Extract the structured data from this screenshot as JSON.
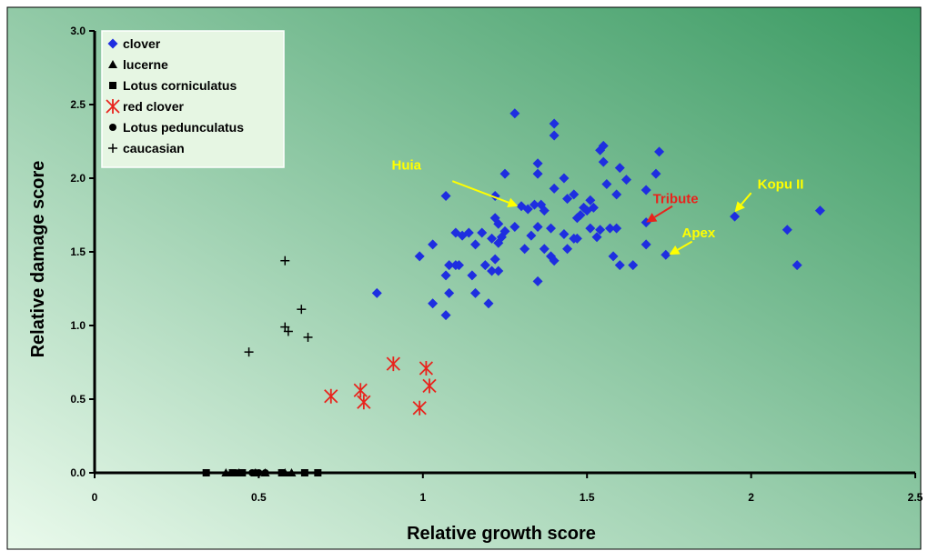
{
  "chart_data": {
    "type": "scatter",
    "xlabel": "Relative growth score",
    "ylabel": "Relative damage score",
    "xlim": [
      0,
      2.5
    ],
    "ylim": [
      0,
      3.0
    ],
    "x_ticks": [
      "0",
      "0.5",
      "1",
      "1.5",
      "2",
      "2.5"
    ],
    "y_ticks": [
      "0.0",
      "0.5",
      "1.0",
      "1.5",
      "2.0",
      "2.5",
      "3.0"
    ],
    "grid": false,
    "legend_position": "top-left",
    "colors": {
      "plot_gradient_top": "#3a9a62",
      "plot_gradient_bottom": "#eafaec",
      "legend_background": "#e6f6e3",
      "clover": "#1e2ee0",
      "red_clover": "#e8231c",
      "black": "#000000",
      "annotation_yellow": "#ffff00",
      "annotation_red": "#e8231c"
    },
    "series": [
      {
        "name": "clover",
        "marker": "diamond",
        "points": [
          [
            1.28,
            2.44
          ],
          [
            1.4,
            2.37
          ],
          [
            1.4,
            2.29
          ],
          [
            1.55,
            2.22
          ],
          [
            1.54,
            2.19
          ],
          [
            1.72,
            2.18
          ],
          [
            1.35,
            2.1
          ],
          [
            1.55,
            2.11
          ],
          [
            1.6,
            2.07
          ],
          [
            1.25,
            2.03
          ],
          [
            1.35,
            2.03
          ],
          [
            1.71,
            2.03
          ],
          [
            1.43,
            2.0
          ],
          [
            1.62,
            1.99
          ],
          [
            1.56,
            1.96
          ],
          [
            1.4,
            1.93
          ],
          [
            1.68,
            1.92
          ],
          [
            1.46,
            1.89
          ],
          [
            1.07,
            1.88
          ],
          [
            1.22,
            1.88
          ],
          [
            1.59,
            1.89
          ],
          [
            1.44,
            1.86
          ],
          [
            1.51,
            1.85
          ],
          [
            1.34,
            1.82
          ],
          [
            1.36,
            1.82
          ],
          [
            1.3,
            1.81
          ],
          [
            1.49,
            1.8
          ],
          [
            1.52,
            1.8
          ],
          [
            1.32,
            1.79
          ],
          [
            1.37,
            1.78
          ],
          [
            1.5,
            1.78
          ],
          [
            1.47,
            1.73
          ],
          [
            1.22,
            1.73
          ],
          [
            1.48,
            1.75
          ],
          [
            1.23,
            1.69
          ],
          [
            1.28,
            1.67
          ],
          [
            1.35,
            1.67
          ],
          [
            1.39,
            1.66
          ],
          [
            1.51,
            1.66
          ],
          [
            1.54,
            1.65
          ],
          [
            1.57,
            1.66
          ],
          [
            1.59,
            1.66
          ],
          [
            1.1,
            1.63
          ],
          [
            1.14,
            1.63
          ],
          [
            1.18,
            1.63
          ],
          [
            1.25,
            1.64
          ],
          [
            1.43,
            1.62
          ],
          [
            1.12,
            1.61
          ],
          [
            1.24,
            1.6
          ],
          [
            1.33,
            1.61
          ],
          [
            1.53,
            1.6
          ],
          [
            1.21,
            1.59
          ],
          [
            1.46,
            1.59
          ],
          [
            1.47,
            1.59
          ],
          [
            1.23,
            1.56
          ],
          [
            1.03,
            1.55
          ],
          [
            1.16,
            1.55
          ],
          [
            1.31,
            1.52
          ],
          [
            1.37,
            1.52
          ],
          [
            1.44,
            1.52
          ],
          [
            0.99,
            1.47
          ],
          [
            1.39,
            1.47
          ],
          [
            1.58,
            1.47
          ],
          [
            1.22,
            1.45
          ],
          [
            1.4,
            1.44
          ],
          [
            1.08,
            1.41
          ],
          [
            1.1,
            1.41
          ],
          [
            1.11,
            1.41
          ],
          [
            1.19,
            1.41
          ],
          [
            1.21,
            1.37
          ],
          [
            1.23,
            1.37
          ],
          [
            1.6,
            1.41
          ],
          [
            1.64,
            1.41
          ],
          [
            1.07,
            1.34
          ],
          [
            1.15,
            1.34
          ],
          [
            1.35,
            1.3
          ],
          [
            0.86,
            1.22
          ],
          [
            1.08,
            1.22
          ],
          [
            1.16,
            1.22
          ],
          [
            1.03,
            1.15
          ],
          [
            1.2,
            1.15
          ],
          [
            1.07,
            1.07
          ],
          [
            1.68,
            1.7
          ],
          [
            1.68,
            1.55
          ],
          [
            1.74,
            1.48
          ],
          [
            1.95,
            1.74
          ],
          [
            2.11,
            1.65
          ],
          [
            2.21,
            1.78
          ],
          [
            2.14,
            1.41
          ]
        ]
      },
      {
        "name": "lucerne",
        "marker": "triangle",
        "points": [
          [
            0.4,
            0.0
          ],
          [
            0.44,
            0.0
          ],
          [
            0.49,
            0.0
          ],
          [
            0.52,
            0.0
          ],
          [
            0.58,
            0.0
          ],
          [
            0.6,
            0.0
          ]
        ]
      },
      {
        "name": "Lotus corniculatus",
        "marker": "square",
        "points": [
          [
            0.34,
            0.0
          ],
          [
            0.42,
            0.0
          ],
          [
            0.45,
            0.0
          ],
          [
            0.57,
            0.0
          ],
          [
            0.64,
            0.0
          ],
          [
            0.68,
            0.0
          ]
        ]
      },
      {
        "name": "red clover",
        "marker": "asterisk",
        "points": [
          [
            0.72,
            0.52
          ],
          [
            0.81,
            0.56
          ],
          [
            0.82,
            0.48
          ],
          [
            0.91,
            0.74
          ],
          [
            0.99,
            0.44
          ],
          [
            1.01,
            0.71
          ],
          [
            1.02,
            0.59
          ]
        ]
      },
      {
        "name": "Lotus pedunculatus",
        "marker": "circle",
        "points": [
          [
            0.43,
            0.0
          ],
          [
            0.44,
            0.0
          ],
          [
            0.48,
            0.0
          ],
          [
            0.49,
            0.0
          ],
          [
            0.5,
            0.0
          ],
          [
            0.52,
            0.0
          ]
        ]
      },
      {
        "name": "caucasian",
        "marker": "plus",
        "points": [
          [
            0.47,
            0.82
          ],
          [
            0.58,
            1.44
          ],
          [
            0.58,
            0.99
          ],
          [
            0.59,
            0.96
          ],
          [
            0.63,
            1.11
          ],
          [
            0.65,
            0.92
          ]
        ]
      }
    ],
    "annotations": [
      {
        "text": "Huia",
        "color": "#ffff00",
        "label_at": [
          0.95,
          2.06
        ],
        "arrow_from": [
          1.09,
          1.98
        ],
        "arrow_to": [
          1.29,
          1.81
        ]
      },
      {
        "text": "Tribute",
        "color": "#e8231c",
        "label_at": [
          1.77,
          1.83
        ],
        "arrow_from": [
          1.76,
          1.81
        ],
        "arrow_to": [
          1.68,
          1.7
        ]
      },
      {
        "text": "Kopu II",
        "color": "#ffff00",
        "label_at": [
          2.09,
          1.93
        ],
        "arrow_from": [
          2.0,
          1.9
        ],
        "arrow_to": [
          1.95,
          1.77
        ]
      },
      {
        "text": "Apex",
        "color": "#ffff00",
        "label_at": [
          1.84,
          1.6
        ],
        "arrow_from": [
          1.82,
          1.57
        ],
        "arrow_to": [
          1.75,
          1.48
        ]
      }
    ]
  }
}
